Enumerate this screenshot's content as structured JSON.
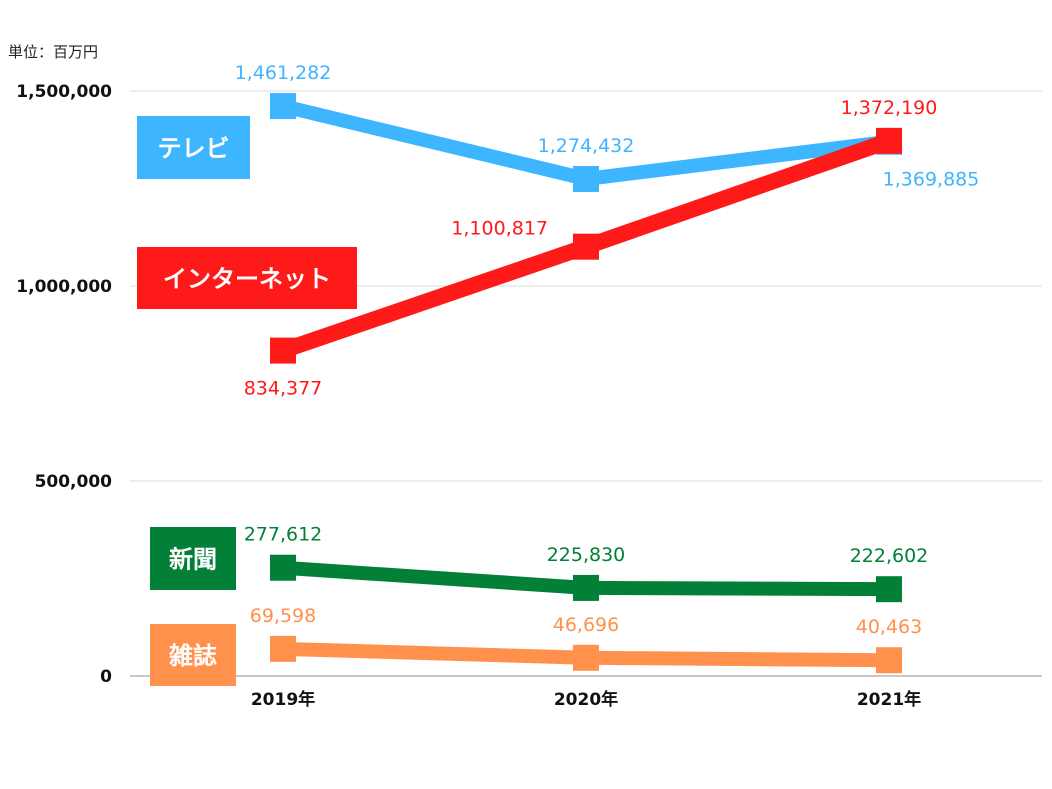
{
  "chart_data": {
    "type": "line",
    "title": "",
    "unit_label": "単位：百万円",
    "xlabel": "",
    "ylabel": "",
    "categories": [
      "2019年",
      "2020年",
      "2021年"
    ],
    "ylim": [
      0,
      1500000
    ],
    "yticks": [
      0,
      500000,
      1000000,
      1500000
    ],
    "ytick_labels": [
      "0",
      "500,000",
      "1,000,000",
      "1,500,000"
    ],
    "grid": true,
    "legend": "left (boxed labels beside each series)",
    "series": [
      {
        "name": "テレビ",
        "color": "#3db5ff",
        "values": [
          1461282,
          1274432,
          1369885
        ],
        "labels": [
          "1,461,282",
          "1,274,432",
          "1,369,885"
        ],
        "label_pos": [
          "above",
          "above",
          "below"
        ]
      },
      {
        "name": "インターネット",
        "color": "#ff1a1a",
        "values": [
          834377,
          1100817,
          1372190
        ],
        "labels": [
          "834,377",
          "1,100,817",
          "1,372,190"
        ],
        "label_pos": [
          "below",
          "above-left",
          "above"
        ]
      },
      {
        "name": "新聞",
        "color": "#038037",
        "values": [
          277612,
          225830,
          222602
        ],
        "labels": [
          "277,612",
          "225,830",
          "222,602"
        ],
        "label_pos": [
          "above",
          "above",
          "above"
        ]
      },
      {
        "name": "雑誌",
        "color": "#ff914d",
        "values": [
          69598,
          46696,
          40463
        ],
        "labels": [
          "69,598",
          "46,696",
          "40,463"
        ],
        "label_pos": [
          "above",
          "above",
          "above"
        ]
      }
    ]
  }
}
